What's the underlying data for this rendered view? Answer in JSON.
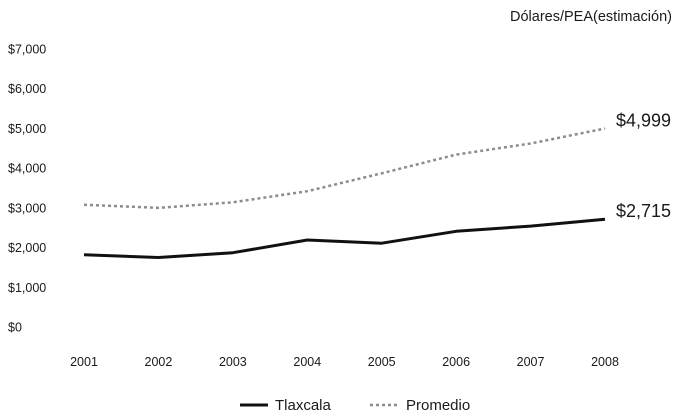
{
  "chart_data": {
    "type": "line",
    "unit_label": "Dólares/PEA(estimación)",
    "categories": [
      "2001",
      "2002",
      "2003",
      "2004",
      "2005",
      "2006",
      "2007",
      "2008"
    ],
    "y_ticks": [
      "$0",
      "$1,000",
      "$2,000",
      "$3,000",
      "$4,000",
      "$5,000",
      "$6,000",
      "$7,000"
    ],
    "ylim": [
      0,
      7000
    ],
    "grid": false,
    "legend_position": "bottom",
    "series": [
      {
        "name": "Tlaxcala",
        "style": "solid",
        "color": "#111111",
        "values": [
          1820,
          1750,
          1870,
          2190,
          2110,
          2410,
          2540,
          2715
        ],
        "end_label": "$2,715"
      },
      {
        "name": "Promedio",
        "style": "dotted",
        "color": "#8c8c8c",
        "values": [
          3080,
          3000,
          3140,
          3420,
          3870,
          4340,
          4620,
          4999
        ],
        "end_label": "$4,999"
      }
    ]
  }
}
